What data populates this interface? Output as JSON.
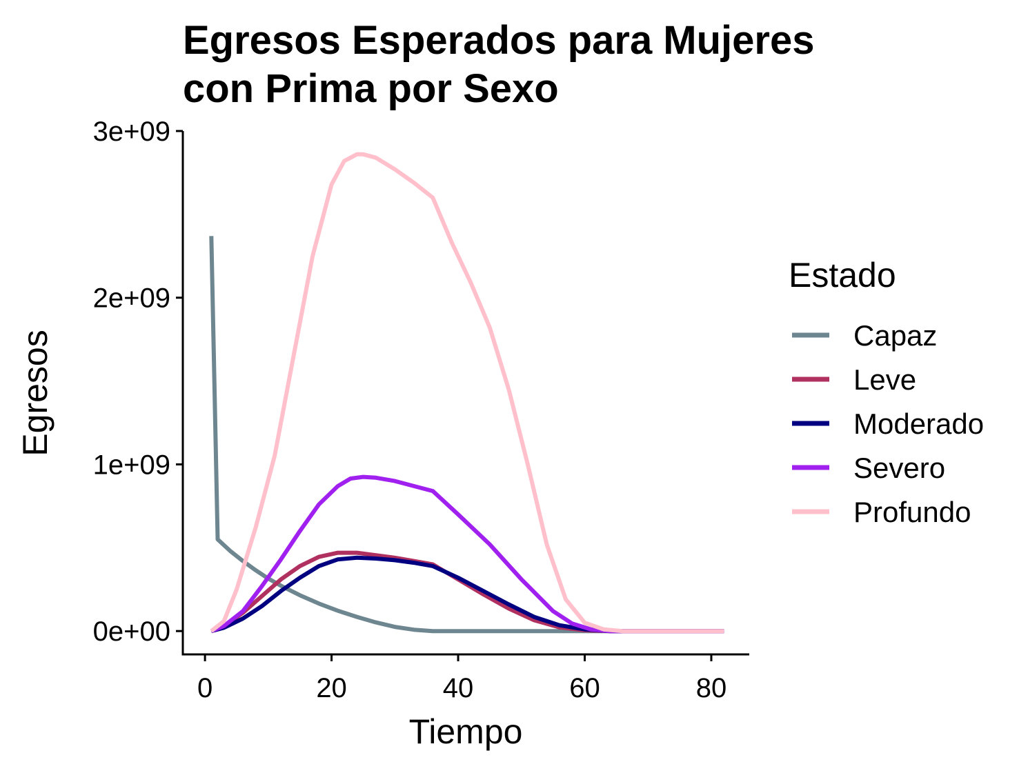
{
  "chart_data": {
    "type": "line",
    "title_lines": [
      "Egresos Esperados para Mujeres",
      "con Prima por Sexo"
    ],
    "xlabel": "Tiempo",
    "ylabel": "Egresos",
    "xlim": [
      -3.5,
      86
    ],
    "ylim": [
      -140000000,
      3000000000
    ],
    "x_ticks": [
      0,
      20,
      40,
      60,
      80
    ],
    "x_tick_labels": [
      "0",
      "20",
      "40",
      "60",
      "80"
    ],
    "y_ticks": [
      0,
      1000000000,
      2000000000,
      3000000000
    ],
    "y_tick_labels": [
      "0e+00",
      "1e+09",
      "2e+09",
      "3e+09"
    ],
    "legend": {
      "title": "Estado",
      "placement": "right"
    },
    "series": [
      {
        "name": "Capaz",
        "color": "#6e8690",
        "x": [
          1,
          2,
          4,
          6,
          8,
          10,
          12,
          15,
          18,
          21,
          24,
          27,
          30,
          33,
          36,
          40,
          50,
          60,
          70,
          82
        ],
        "values": [
          2370000000,
          550000000,
          480000000,
          420000000,
          365000000,
          315000000,
          272000000,
          215000000,
          165000000,
          122000000,
          85000000,
          52000000,
          25000000,
          8000000,
          0,
          0,
          0,
          0,
          0,
          0
        ]
      },
      {
        "name": "Leve",
        "color": "#b03060",
        "x": [
          1,
          3,
          6,
          9,
          12,
          15,
          18,
          21,
          24,
          27,
          30,
          33,
          36,
          40,
          44,
          48,
          52,
          56,
          60,
          64,
          70,
          82
        ],
        "values": [
          0,
          30000000,
          110000000,
          210000000,
          310000000,
          390000000,
          445000000,
          470000000,
          470000000,
          455000000,
          440000000,
          420000000,
          400000000,
          310000000,
          220000000,
          135000000,
          65000000,
          22000000,
          5000000,
          0,
          0,
          0
        ]
      },
      {
        "name": "Moderado",
        "color": "#000080",
        "x": [
          1,
          3,
          6,
          9,
          12,
          15,
          18,
          21,
          24,
          27,
          30,
          33,
          36,
          40,
          44,
          48,
          52,
          56,
          60,
          64,
          70,
          82
        ],
        "values": [
          0,
          20000000,
          75000000,
          150000000,
          240000000,
          320000000,
          390000000,
          430000000,
          440000000,
          435000000,
          425000000,
          410000000,
          390000000,
          320000000,
          240000000,
          160000000,
          85000000,
          35000000,
          10000000,
          0,
          0,
          0
        ]
      },
      {
        "name": "Severo",
        "color": "#a020f0",
        "x": [
          1,
          3,
          6,
          9,
          12,
          15,
          18,
          21,
          23,
          25,
          27,
          30,
          33,
          36,
          40,
          45,
          50,
          55,
          58,
          61,
          64,
          70,
          82
        ],
        "values": [
          0,
          30000000,
          120000000,
          270000000,
          430000000,
          600000000,
          760000000,
          870000000,
          915000000,
          925000000,
          920000000,
          900000000,
          870000000,
          840000000,
          700000000,
          520000000,
          310000000,
          120000000,
          45000000,
          10000000,
          0,
          0,
          0
        ]
      },
      {
        "name": "Profundo",
        "color": "#ffc0cb",
        "x": [
          1,
          3,
          5,
          8,
          11,
          14,
          17,
          20,
          22,
          24,
          25,
          27,
          30,
          33,
          36,
          39,
          42,
          45,
          48,
          51,
          54,
          57,
          60,
          63,
          66,
          70,
          82
        ],
        "values": [
          0,
          60000000,
          250000000,
          620000000,
          1050000000,
          1650000000,
          2250000000,
          2680000000,
          2820000000,
          2860000000,
          2860000000,
          2840000000,
          2770000000,
          2690000000,
          2600000000,
          2330000000,
          2090000000,
          1820000000,
          1450000000,
          1000000000,
          520000000,
          190000000,
          50000000,
          10000000,
          0,
          0,
          0
        ]
      }
    ]
  }
}
